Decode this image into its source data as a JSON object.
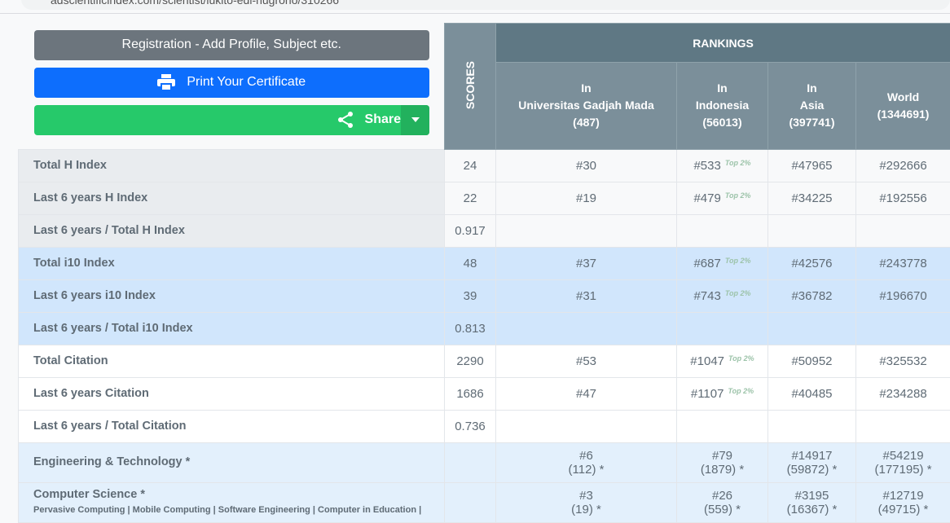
{
  "browser": {
    "url": "adscientificindex.com/scientist/lukito-edi-nugroho/310266"
  },
  "buttons": {
    "registration": "Registration - Add Profile, Subject etc.",
    "print": "Print Your Certificate",
    "share": "Share"
  },
  "header": {
    "scores": "SCORES",
    "rankings": "RANKINGS",
    "columns": [
      {
        "l1": "In",
        "l2": "Universitas Gadjah Mada",
        "l3": "(487)"
      },
      {
        "l1": "In",
        "l2": "Indonesia",
        "l3": "(56013)"
      },
      {
        "l1": "In",
        "l2": "Asia",
        "l3": "(397741)"
      },
      {
        "l1": "World",
        "l2": "(1344691)"
      }
    ]
  },
  "rows": [
    {
      "label": "Total H Index",
      "score": "24",
      "r": [
        "#30",
        "#533",
        "#47965",
        "#292666"
      ],
      "top": "Top 2%"
    },
    {
      "label": "Last 6 years H Index",
      "score": "22",
      "r": [
        "#19",
        "#479",
        "#34225",
        "#192556"
      ],
      "top": "Top 2%"
    },
    {
      "label": "Last 6 years / Total H Index",
      "score": "0.917"
    },
    {
      "label": "Total i10 Index",
      "score": "48",
      "r": [
        "#37",
        "#687",
        "#42576",
        "#243778"
      ],
      "top": "Top 2%"
    },
    {
      "label": "Last 6 years i10 Index",
      "score": "39",
      "r": [
        "#31",
        "#743",
        "#36782",
        "#196670"
      ],
      "top": "Top 2%"
    },
    {
      "label": "Last 6 years / Total i10 Index",
      "score": "0.813"
    },
    {
      "label": "Total Citation",
      "score": "2290",
      "r": [
        "#53",
        "#1047",
        "#50952",
        "#325532"
      ],
      "top": "Top 2%"
    },
    {
      "label": "Last 6 years Citation",
      "score": "1686",
      "r": [
        "#47",
        "#1107",
        "#40485",
        "#234288"
      ],
      "top": "Top 2%"
    },
    {
      "label": "Last 6 years / Total Citation",
      "score": "0.736"
    }
  ],
  "subjects": [
    {
      "label": "Engineering & Technology *",
      "r": [
        [
          "#6",
          "(112) *"
        ],
        [
          "#79",
          "(1879) *"
        ],
        [
          "#14917",
          "(59872) *"
        ],
        [
          "#54219",
          "(177195) *"
        ]
      ]
    },
    {
      "label": "Computer Science *",
      "keywords": "Pervasive Computing | Mobile Computing | Software Engineering | Computer in Education |",
      "r": [
        [
          "#3",
          "(19) *"
        ],
        [
          "#26",
          "(559) *"
        ],
        [
          "#3195",
          "(16367) *"
        ],
        [
          "#12719",
          "(49715) *"
        ]
      ]
    }
  ]
}
